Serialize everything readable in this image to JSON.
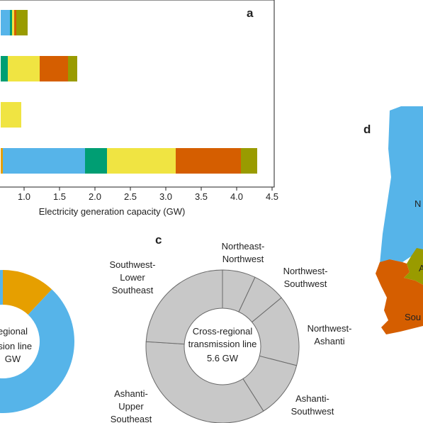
{
  "panel_labels": {
    "a": "a",
    "c": "c",
    "d": "d"
  },
  "colors": {
    "blue": "#56b4e9",
    "green": "#009e73",
    "yellow": "#f0e442",
    "orange": "#d55e00",
    "olive": "#999b00",
    "amber": "#e69f00",
    "grey": "#c8c8c8"
  },
  "chart_data": [
    {
      "type": "bar",
      "orientation": "horizontal",
      "stacked": true,
      "xlabel": "Electricity generation capacity (GW)",
      "xlim": [
        0.67,
        4.5
      ],
      "xticks": [
        "1.0",
        "1.5",
        "2.0",
        "2.5",
        "3.0",
        "3.5",
        "4.0",
        "4.5"
      ],
      "bars": [
        {
          "segments": [
            {
              "color": "blue",
              "to": 0.8
            },
            {
              "color": "green",
              "to": 0.83
            },
            {
              "color": "yellow",
              "to": 0.86
            },
            {
              "color": "orange",
              "to": 0.89
            },
            {
              "color": "olive",
              "to": 1.05
            }
          ]
        },
        {
          "segments": [
            {
              "color": "green",
              "to": 0.77
            },
            {
              "color": "yellow",
              "to": 1.22
            },
            {
              "color": "orange",
              "to": 1.62
            },
            {
              "color": "olive",
              "to": 1.75
            }
          ]
        },
        {
          "segments": [
            {
              "color": "yellow",
              "to": 0.96
            }
          ]
        },
        {
          "segments": [
            {
              "color": "amber",
              "to": 0.7
            },
            {
              "color": "blue",
              "to": 1.86
            },
            {
              "color": "green",
              "to": 2.17
            },
            {
              "color": "yellow",
              "to": 3.14
            },
            {
              "color": "orange",
              "to": 4.06
            },
            {
              "color": "olive",
              "to": 4.29
            }
          ]
        }
      ]
    },
    {
      "type": "pie",
      "donut": true,
      "center_text": [
        "egional",
        "ssion line",
        "GW"
      ],
      "slices": [
        {
          "color": "amber",
          "value": 0.12
        },
        {
          "color": "blue",
          "value": 0.88
        }
      ]
    },
    {
      "type": "pie",
      "donut": true,
      "center_text": [
        "Cross-regional",
        "transmission line",
        "5.6 GW"
      ],
      "slices": [
        {
          "label": [
            "Northeast-",
            "Northwest"
          ],
          "value": 0.07
        },
        {
          "label": [
            "Northwest-",
            "Southwest"
          ],
          "value": 0.07
        },
        {
          "label": [
            "Northwest-",
            "Ashanti"
          ],
          "value": 0.15
        },
        {
          "label": [
            "Ashanti-",
            "Southwest"
          ],
          "value": 0.12
        },
        {
          "label": [
            "Ashanti-",
            "Upper",
            "Southeast"
          ],
          "value": 0.35
        },
        {
          "label": [
            "Southwest-",
            "Lower",
            "Southeast"
          ],
          "value": 0.24
        }
      ]
    }
  ],
  "map": {
    "labels": [
      {
        "text": "N",
        "color": "blue"
      },
      {
        "text": "A",
        "color": "olive"
      },
      {
        "text": "Sou",
        "color": "orange"
      }
    ]
  }
}
